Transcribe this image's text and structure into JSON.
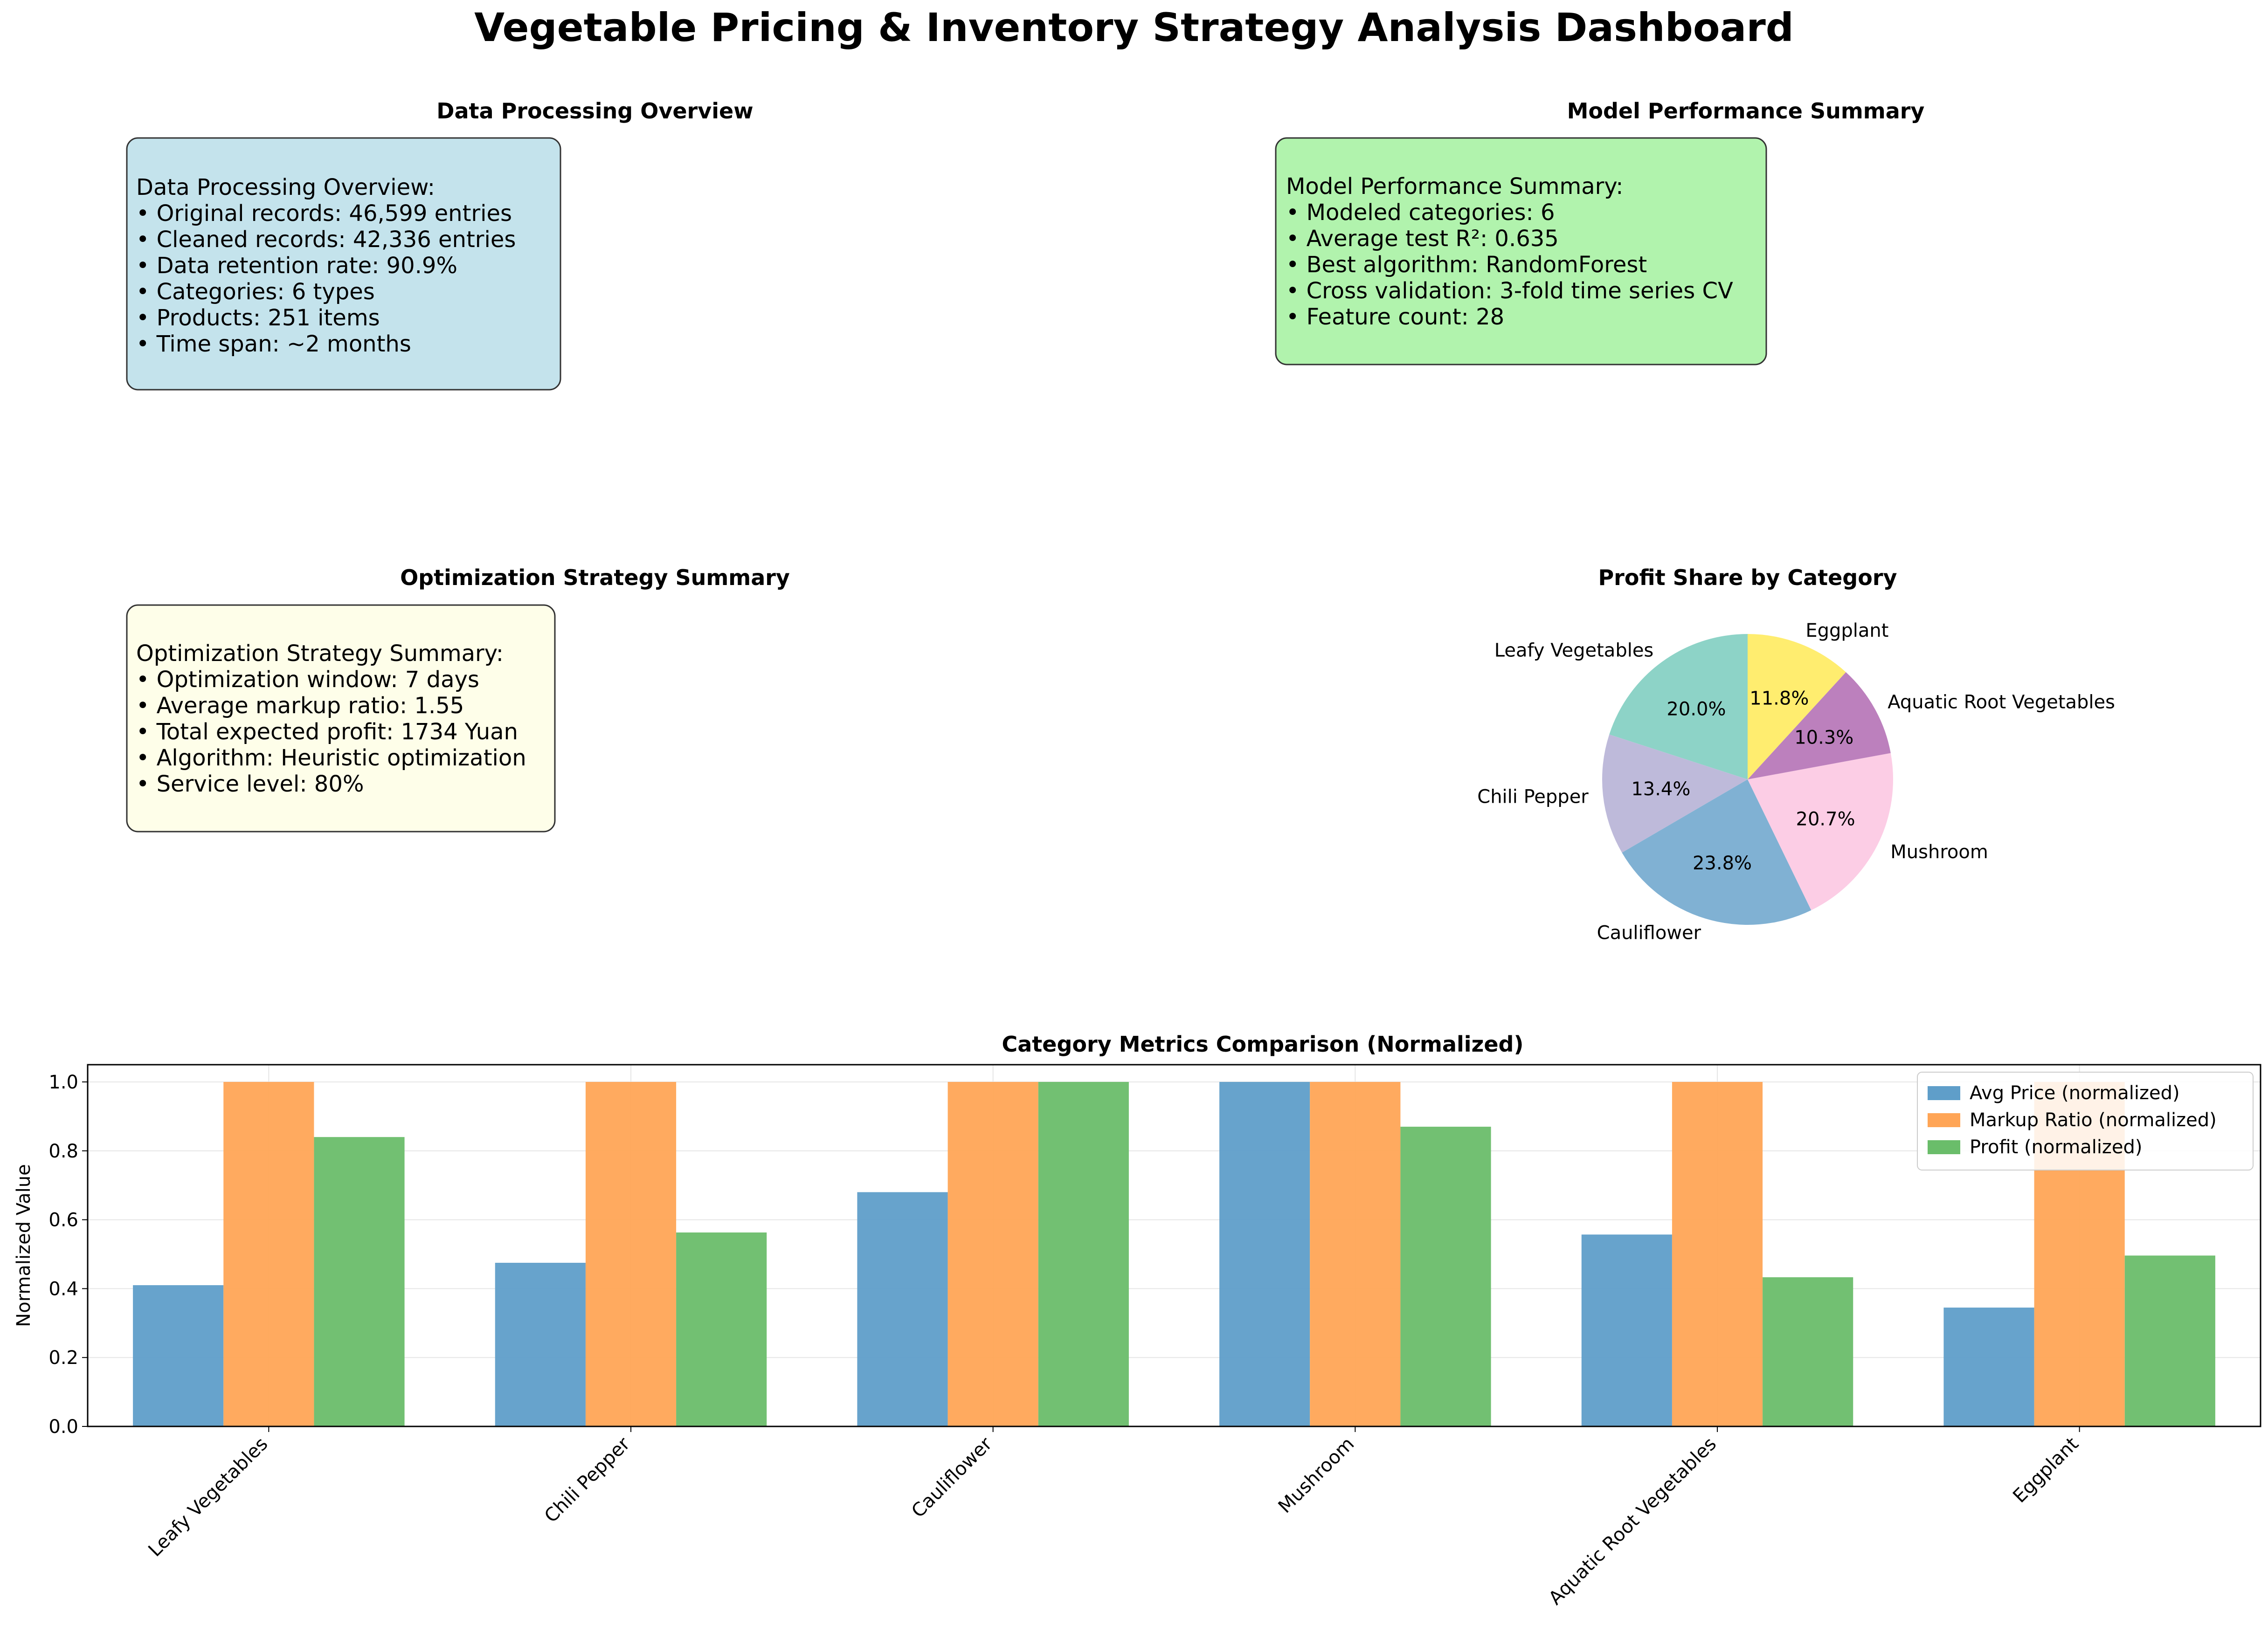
{
  "dashboard": {
    "title": "Vegetable Pricing & Inventory Strategy Analysis Dashboard"
  },
  "panels": {
    "data_processing": {
      "title": "Data Processing Overview",
      "bg_color": "#c4e3ec",
      "lines": [
        "Data Processing Overview:",
        "• Original records: 46,599 entries",
        "• Cleaned records: 42,336 entries",
        "• Data retention rate: 90.9%",
        "• Categories: 6 types",
        "• Products: 251 items",
        "• Time span: ~2 months"
      ]
    },
    "model_performance": {
      "title": "Model Performance Summary",
      "bg_color": "#b1f3ad",
      "lines": [
        "Model Performance Summary:",
        "• Modeled categories: 6",
        "• Average test R²: 0.635",
        "• Best algorithm: RandomForest",
        "• Cross validation: 3-fold time series CV",
        "• Feature count: 28"
      ]
    },
    "optimization": {
      "title": "Optimization Strategy Summary",
      "bg_color": "#fefee9",
      "lines": [
        "Optimization Strategy Summary:",
        "• Optimization window: 7 days",
        "• Average markup ratio: 1.55",
        "• Total expected profit: 1734 Yuan",
        "• Algorithm: Heuristic optimization",
        "• Service level: 80%"
      ]
    }
  },
  "chart_data": [
    {
      "type": "pie",
      "title": "Profit Share by Category",
      "labels": [
        "Leafy Vegetables",
        "Chili Pepper",
        "Cauliflower",
        "Mushroom",
        "Aquatic Root Vegetables",
        "Eggplant"
      ],
      "values": [
        20.0,
        13.4,
        23.8,
        20.7,
        10.3,
        11.8
      ],
      "value_labels": [
        "20.0%",
        "13.4%",
        "23.8%",
        "20.7%",
        "10.3%",
        "11.8%"
      ],
      "colors": [
        "#8dd3c7",
        "#bebada",
        "#80b1d3",
        "#fccde5",
        "#bc80bd",
        "#ffed6f"
      ],
      "start_angle": 90,
      "direction": "counterclockwise"
    },
    {
      "type": "bar",
      "title": "Category Metrics Comparison (Normalized)",
      "xlabel": "",
      "ylabel": "Normalized Value",
      "categories": [
        "Leafy Vegetables",
        "Chili Pepper",
        "Cauliflower",
        "Mushroom",
        "Aquatic Root Vegetables",
        "Eggplant"
      ],
      "series": [
        {
          "name": "Avg Price (normalized)",
          "color": "#5f9ec9",
          "values": [
            0.41,
            0.475,
            0.68,
            1.0,
            0.557,
            0.345
          ]
        },
        {
          "name": "Markup Ratio (normalized)",
          "color": "#ffa556",
          "values": [
            1.0,
            1.0,
            1.0,
            1.0,
            1.0,
            1.0
          ]
        },
        {
          "name": "Profit (normalized)",
          "color": "#6abd6a",
          "values": [
            0.84,
            0.563,
            1.0,
            0.87,
            0.433,
            0.496
          ]
        }
      ],
      "ylim": [
        0,
        1.05
      ],
      "yticks": [
        "0.0",
        "0.2",
        "0.4",
        "0.6",
        "0.8",
        "1.0"
      ],
      "grid": true,
      "legend_position": "top-right"
    }
  ]
}
